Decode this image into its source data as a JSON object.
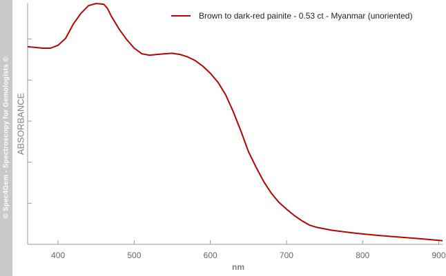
{
  "watermark": "© Spec4Gem - Spectroscopy for Gemologists ©",
  "chart_data": {
    "type": "line",
    "title": "",
    "xlabel": "nm",
    "ylabel": "ABSORBANCE",
    "xlim": [
      360,
      905
    ],
    "ylim": [
      0,
      1
    ],
    "xticks": [
      400,
      500,
      600,
      700,
      800,
      900
    ],
    "yticks": [
      0.0,
      0.17,
      0.34,
      0.51,
      0.68,
      0.85
    ],
    "ytick_labels_shown": false,
    "grid": false,
    "legend": "top-right",
    "series": [
      {
        "name": "Brown to dark-red painite - 0.53 ct - Myanmar (unoriented)",
        "color": "#bb0000",
        "x": [
          360,
          370,
          380,
          390,
          400,
          410,
          420,
          430,
          440,
          450,
          460,
          465,
          470,
          480,
          490,
          500,
          510,
          520,
          530,
          540,
          550,
          560,
          570,
          580,
          590,
          600,
          610,
          620,
          630,
          640,
          650,
          660,
          670,
          680,
          690,
          700,
          710,
          720,
          730,
          740,
          750,
          760,
          780,
          800,
          820,
          840,
          860,
          880,
          905
        ],
        "y": [
          0.818,
          0.815,
          0.812,
          0.812,
          0.824,
          0.853,
          0.912,
          0.956,
          0.988,
          0.997,
          0.994,
          0.976,
          0.944,
          0.892,
          0.848,
          0.812,
          0.789,
          0.783,
          0.786,
          0.789,
          0.791,
          0.786,
          0.776,
          0.761,
          0.738,
          0.708,
          0.671,
          0.62,
          0.55,
          0.47,
          0.384,
          0.32,
          0.26,
          0.212,
          0.174,
          0.146,
          0.12,
          0.098,
          0.08,
          0.07,
          0.064,
          0.058,
          0.05,
          0.043,
          0.037,
          0.032,
          0.027,
          0.022,
          0.015
        ]
      }
    ]
  }
}
